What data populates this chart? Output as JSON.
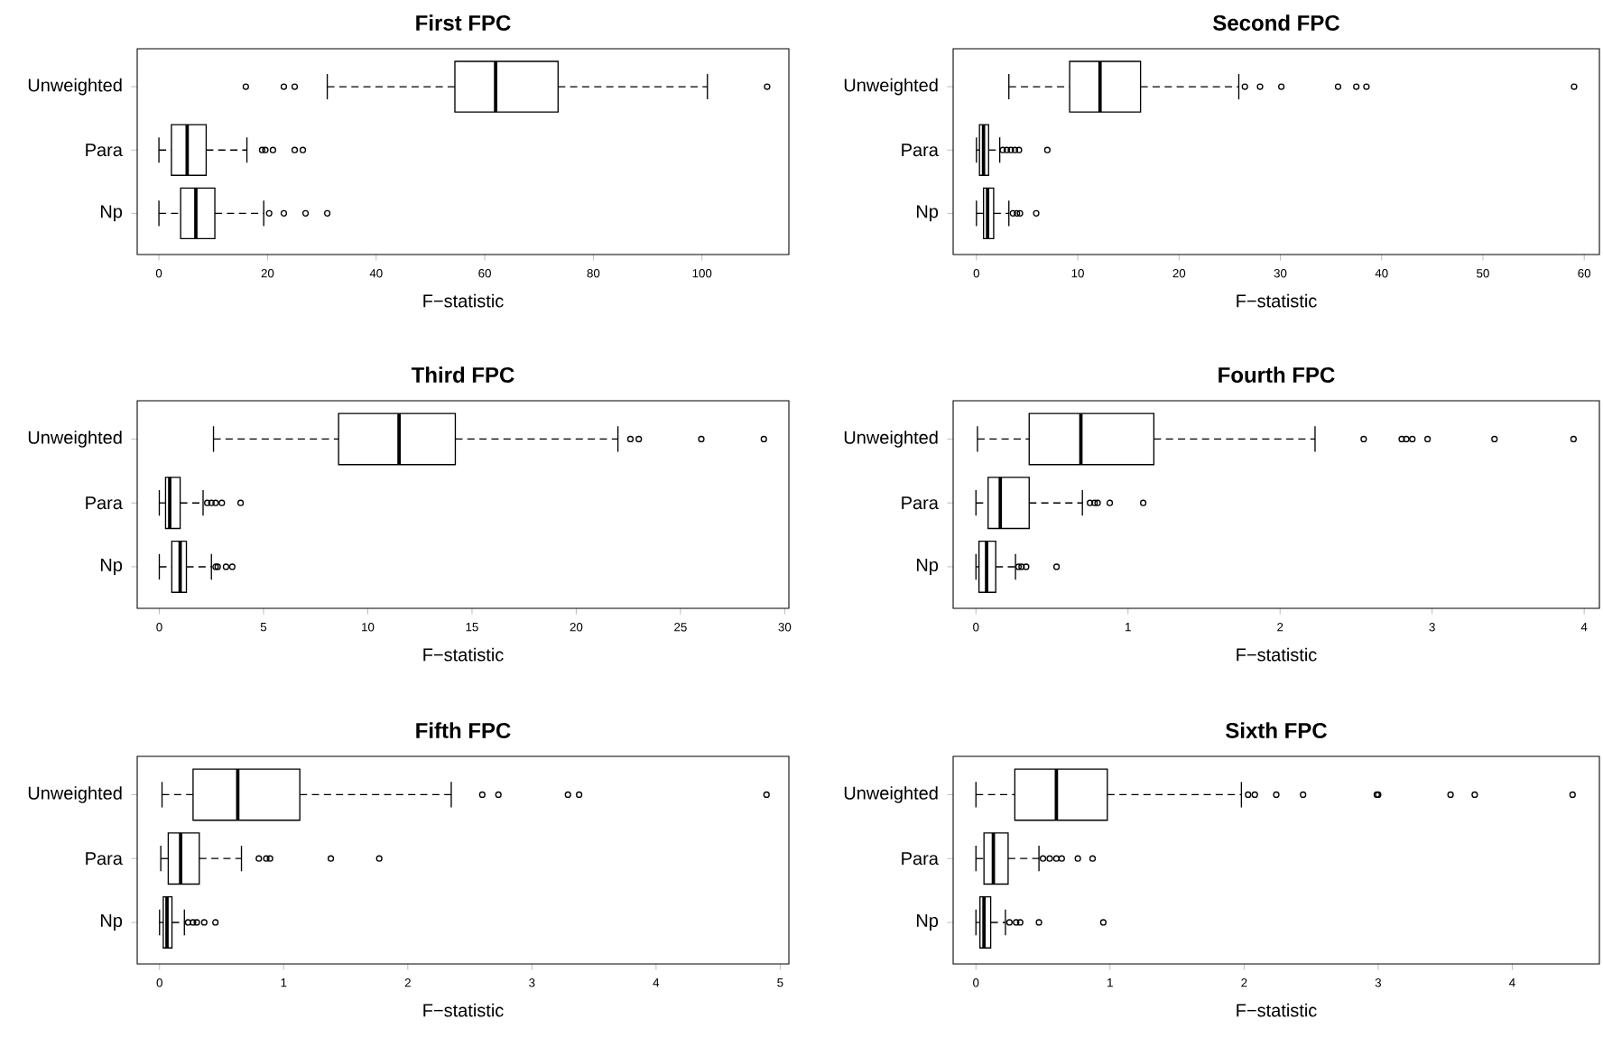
{
  "chart_data": [
    {
      "type": "box",
      "orientation": "horizontal",
      "title": "First FPC",
      "xlabel": "F−statistic",
      "categories": [
        "Unweighted",
        "Para",
        "Np"
      ],
      "xlim": [
        -4,
        116
      ],
      "xticks": [
        0,
        20,
        40,
        60,
        80,
        100
      ],
      "boxes": [
        {
          "low": 31,
          "q1": 54.5,
          "median": 62,
          "q3": 73.5,
          "high": 101,
          "outliers": [
            16,
            23,
            25,
            112
          ]
        },
        {
          "low": 0,
          "q1": 2.3,
          "median": 5.2,
          "q3": 8.7,
          "high": 16.2,
          "outliers": [
            19,
            19.6,
            21,
            25,
            26.5
          ]
        },
        {
          "low": 0,
          "q1": 4,
          "median": 6.8,
          "q3": 10.3,
          "high": 19.3,
          "outliers": [
            20.3,
            23,
            27,
            31
          ]
        }
      ]
    },
    {
      "type": "box",
      "orientation": "horizontal",
      "title": "Second FPC",
      "xlabel": "F−statistic",
      "categories": [
        "Unweighted",
        "Para",
        "Np"
      ],
      "xlim": [
        -2.3,
        61.5
      ],
      "xticks": [
        0,
        10,
        20,
        30,
        40,
        50,
        60
      ],
      "boxes": [
        {
          "low": 3.2,
          "q1": 9.2,
          "median": 12.2,
          "q3": 16.2,
          "high": 25.9,
          "outliers": [
            26.5,
            28,
            30.1,
            35.7,
            37.5,
            38.5,
            59
          ]
        },
        {
          "low": 0,
          "q1": 0.3,
          "median": 0.7,
          "q3": 1.2,
          "high": 2.3,
          "outliers": [
            2.6,
            3,
            3.4,
            3.8,
            4.2,
            7
          ]
        },
        {
          "low": 0,
          "q1": 0.7,
          "median": 1.1,
          "q3": 1.7,
          "high": 3.2,
          "outliers": [
            3.6,
            4,
            4.3,
            5.9
          ]
        }
      ]
    },
    {
      "type": "box",
      "orientation": "horizontal",
      "title": "Third FPC",
      "xlabel": "F−statistic",
      "categories": [
        "Unweighted",
        "Para",
        "Np"
      ],
      "xlim": [
        -1.06,
        30.2
      ],
      "xticks": [
        0,
        5,
        10,
        15,
        20,
        25,
        30
      ],
      "boxes": [
        {
          "low": 2.6,
          "q1": 8.6,
          "median": 11.5,
          "q3": 14.2,
          "high": 22,
          "outliers": [
            22.6,
            23,
            26,
            29
          ]
        },
        {
          "low": 0,
          "q1": 0.3,
          "median": 0.5,
          "q3": 1.0,
          "high": 2.1,
          "outliers": [
            2.3,
            2.5,
            2.7,
            3.0,
            3.9
          ]
        },
        {
          "low": 0,
          "q1": 0.6,
          "median": 1.0,
          "q3": 1.3,
          "high": 2.5,
          "outliers": [
            2.7,
            2.8,
            3.2,
            3.5
          ]
        }
      ]
    },
    {
      "type": "box",
      "orientation": "horizontal",
      "title": "Fourth FPC",
      "xlabel": "F−statistic",
      "categories": [
        "Unweighted",
        "Para",
        "Np"
      ],
      "xlim": [
        -0.15,
        4.1
      ],
      "xticks": [
        0,
        1,
        2,
        3,
        4
      ],
      "boxes": [
        {
          "low": 0.01,
          "q1": 0.35,
          "median": 0.69,
          "q3": 1.17,
          "high": 2.23,
          "outliers": [
            2.55,
            2.8,
            2.83,
            2.87,
            2.97,
            3.41,
            3.93
          ]
        },
        {
          "low": 0,
          "q1": 0.08,
          "median": 0.16,
          "q3": 0.35,
          "high": 0.7,
          "outliers": [
            0.75,
            0.78,
            0.8,
            0.88,
            1.1
          ]
        },
        {
          "low": 0,
          "q1": 0.02,
          "median": 0.07,
          "q3": 0.13,
          "high": 0.26,
          "outliers": [
            0.28,
            0.3,
            0.33,
            0.53
          ]
        }
      ]
    },
    {
      "type": "box",
      "orientation": "horizontal",
      "title": "Fifth FPC",
      "xlabel": "F−statistic",
      "categories": [
        "Unweighted",
        "Para",
        "Np"
      ],
      "xlim": [
        -0.18,
        5.07
      ],
      "xticks": [
        0,
        1,
        2,
        3,
        4,
        5
      ],
      "boxes": [
        {
          "low": 0.02,
          "q1": 0.27,
          "median": 0.63,
          "q3": 1.13,
          "high": 2.35,
          "outliers": [
            2.6,
            2.73,
            3.29,
            3.38,
            4.89
          ]
        },
        {
          "low": 0.01,
          "q1": 0.07,
          "median": 0.17,
          "q3": 0.32,
          "high": 0.66,
          "outliers": [
            0.8,
            0.86,
            0.89,
            1.38,
            1.77
          ]
        },
        {
          "low": 0,
          "q1": 0.03,
          "median": 0.06,
          "q3": 0.1,
          "high": 0.2,
          "outliers": [
            0.23,
            0.27,
            0.3,
            0.36,
            0.45
          ]
        }
      ]
    },
    {
      "type": "box",
      "orientation": "horizontal",
      "title": "Sixth FPC",
      "xlabel": "F−statistic",
      "categories": [
        "Unweighted",
        "Para",
        "Np"
      ],
      "xlim": [
        -0.17,
        4.65
      ],
      "xticks": [
        0,
        1,
        2,
        3,
        4
      ],
      "boxes": [
        {
          "low": 0,
          "q1": 0.29,
          "median": 0.6,
          "q3": 0.98,
          "high": 1.98,
          "outliers": [
            2.03,
            2.08,
            2.24,
            2.44,
            2.99,
            3.0,
            3.54,
            3.72,
            4.45
          ]
        },
        {
          "low": 0,
          "q1": 0.06,
          "median": 0.13,
          "q3": 0.24,
          "high": 0.47,
          "outliers": [
            0.5,
            0.55,
            0.6,
            0.64,
            0.76,
            0.87
          ]
        },
        {
          "low": 0,
          "q1": 0.03,
          "median": 0.06,
          "q3": 0.11,
          "high": 0.22,
          "outliers": [
            0.25,
            0.3,
            0.33,
            0.47,
            0.95
          ]
        }
      ]
    }
  ]
}
